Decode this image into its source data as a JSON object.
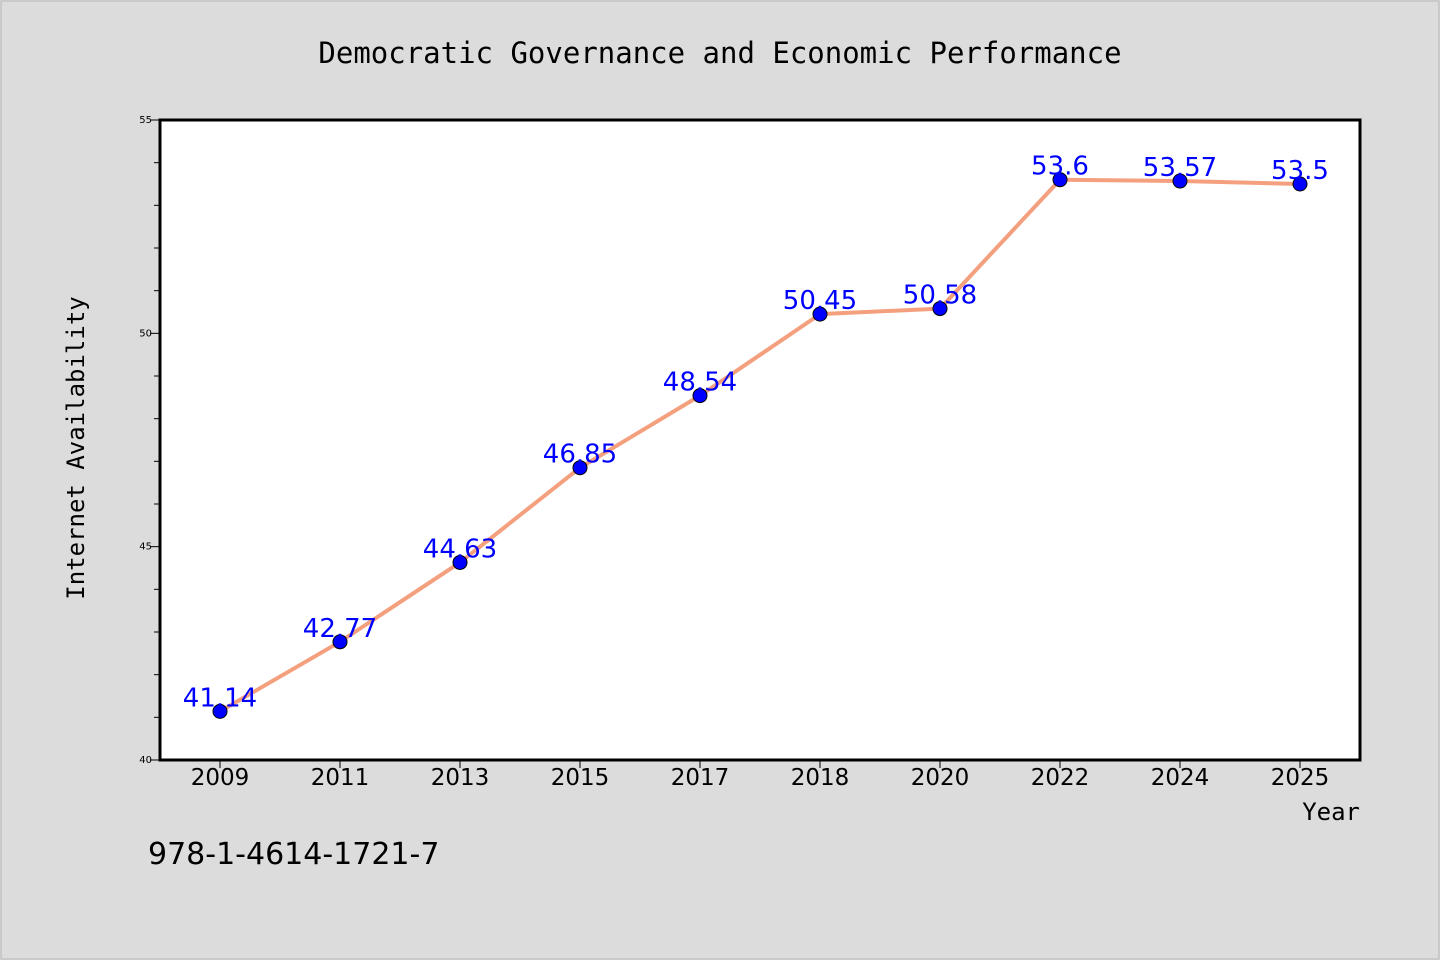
{
  "chart_data": {
    "type": "line",
    "title": "Democratic Governance and Economic Performance",
    "xlabel": "Year",
    "ylabel": "Internet Availability",
    "categories": [
      "2009",
      "2011",
      "2013",
      "2015",
      "2017",
      "2018",
      "2020",
      "2022",
      "2024",
      "2025"
    ],
    "series": [
      {
        "values": [
          41.14,
          42.77,
          44.63,
          46.85,
          48.54,
          50.45,
          50.58,
          53.6,
          53.57,
          53.5
        ],
        "labels": [
          "41.14",
          "42.77",
          "44.63",
          "46.85",
          "48.54",
          "50.45",
          "50.58",
          "53.6",
          "53.57",
          "53.5"
        ],
        "line_color": "#f4a07e",
        "marker_color": "#0000ff"
      }
    ],
    "ylim": [
      40,
      55
    ],
    "yticks": [
      40,
      45,
      50,
      55
    ],
    "ytick_labels": [
      "40",
      "45",
      "50",
      "55"
    ],
    "grid": false,
    "legend": "none"
  },
  "footer": {
    "isbn": "978-1-4614-1721-7"
  }
}
